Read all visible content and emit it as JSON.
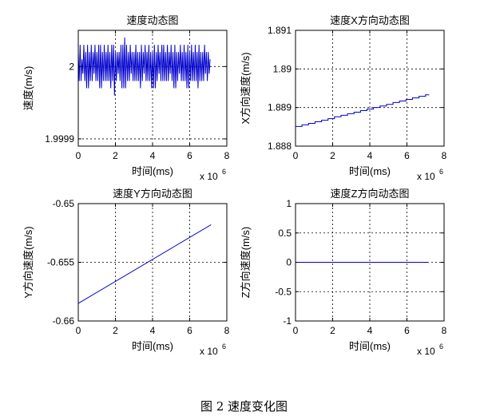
{
  "figure_caption": "图 2  速度变化图",
  "chart_data": [
    {
      "type": "line",
      "title": "速度动态图",
      "xlabel": "时间(ms)",
      "ylabel": "速度(m/s)",
      "x_exponent": "x 10",
      "x_exponent_power": "6",
      "xlim": [
        0,
        8
      ],
      "ylim": [
        1.99989,
        2.00005
      ],
      "xticks": [
        "0",
        "2",
        "4",
        "6",
        "8"
      ],
      "yticks": [
        {
          "value": 1.9999,
          "label": "1.9999"
        },
        {
          "value": 2.0,
          "label": "2"
        }
      ],
      "grid": true,
      "color": "#0000cc",
      "series": [
        {
          "x": [
            0.0,
            0.05,
            0.1,
            0.15,
            0.2,
            0.25,
            0.3,
            0.35,
            0.4,
            0.45,
            0.5,
            0.55,
            0.6,
            0.65,
            0.7,
            0.75,
            0.8,
            0.85,
            0.9,
            0.95,
            1.0,
            1.05,
            1.1,
            1.15,
            1.2,
            1.25,
            1.3,
            1.35,
            1.4,
            1.45,
            1.5,
            1.55,
            1.6,
            1.65,
            1.7,
            1.75,
            1.8,
            1.85,
            1.9,
            1.95,
            2.0,
            2.05,
            2.1,
            2.15,
            2.2,
            2.25,
            2.3,
            2.35,
            2.4,
            2.45,
            2.5,
            2.55,
            2.6,
            2.65,
            2.7,
            2.75,
            2.8,
            2.85,
            2.9,
            2.95,
            3.0,
            3.05,
            3.1,
            3.15,
            3.2,
            3.25,
            3.3,
            3.35,
            3.4,
            3.45,
            3.5,
            3.55,
            3.6,
            3.65,
            3.7,
            3.75,
            3.8,
            3.85,
            3.9,
            3.95,
            4.0,
            4.05,
            4.1,
            4.15,
            4.2,
            4.25,
            4.3,
            4.35,
            4.4,
            4.45,
            4.5,
            4.55,
            4.6,
            4.65,
            4.7,
            4.75,
            4.8,
            4.85,
            4.9,
            4.95,
            5.0,
            5.05,
            5.1,
            5.15,
            5.2,
            5.25,
            5.3,
            5.35,
            5.4,
            5.45,
            5.5,
            5.55,
            5.6,
            5.65,
            5.7,
            5.75,
            5.8,
            5.85,
            5.9,
            5.95,
            6.0,
            6.05,
            6.1,
            6.15,
            6.2,
            6.25,
            6.3,
            6.35,
            6.4,
            6.45,
            6.5,
            6.55,
            6.6,
            6.65,
            6.7,
            6.75,
            6.8,
            6.85,
            6.9,
            6.95,
            7.0,
            7.05,
            7.1
          ],
          "y": [
            2.00002,
            1.99998,
            2.00003,
            1.99998,
            2.00001,
            1.99999,
            2.00003,
            1.99998,
            2.00002,
            1.99997,
            2.00003,
            1.99997,
            2.00002,
            1.99998,
            2.00003,
            1.99998,
            2.00002,
            1.99999,
            2.00003,
            1.99998,
            2.00002,
            1.99998,
            2.00003,
            1.99997,
            2.00003,
            1.99997,
            2.00002,
            1.99998,
            2.00003,
            1.99998,
            2.00002,
            1.99998,
            2.00003,
            1.99998,
            2.00002,
            1.99997,
            2.00003,
            1.99998,
            2.00003,
            1.99996,
            2.00002,
            1.99998,
            2.00002,
            1.99999,
            2.00002,
            1.99998,
            2.00003,
            1.99997,
            2.00003,
            1.99997,
            2.00004,
            1.99997,
            2.00003,
            1.99998,
            2.00002,
            1.99998,
            2.00003,
            1.99999,
            2.00002,
            1.99998,
            2.00002,
            1.99998,
            2.00003,
            1.99998,
            2.00002,
            1.99998,
            2.00002,
            1.99997,
            2.00003,
            1.99998,
            2.00002,
            1.99999,
            2.00003,
            1.99998,
            2.00002,
            1.99998,
            2.00003,
            1.99998,
            2.00002,
            1.99997,
            2.00002,
            1.99997,
            2.00003,
            1.99997,
            2.00002,
            1.99998,
            2.00003,
            1.99999,
            2.00002,
            1.99998,
            2.00003,
            1.99998,
            2.00003,
            1.99998,
            2.00002,
            1.99998,
            2.00003,
            1.99998,
            2.00002,
            1.99999,
            2.00003,
            1.99998,
            2.00002,
            1.99997,
            2.00003,
            1.99997,
            2.00002,
            1.99998,
            2.00002,
            1.99999,
            2.00003,
            1.99998,
            2.00002,
            1.99998,
            2.00003,
            1.99998,
            2.00002,
            1.99997,
            2.00003,
            1.99997,
            2.00002,
            1.99998,
            2.00003,
            1.99998,
            2.00002,
            1.99998,
            2.00003,
            1.99998,
            2.00002,
            1.99997,
            2.00003,
            1.99998,
            2.00002,
            1.99998,
            2.00002,
            1.99998,
            2.00003,
            1.99999,
            2.00002,
            1.99998,
            2.00002,
            1.99999,
            2.00001
          ]
        }
      ]
    },
    {
      "type": "line",
      "title": "速度X方向动态图",
      "xlabel": "时间(ms)",
      "ylabel": "X方向速度(m/s)",
      "x_exponent": "x 10",
      "x_exponent_power": "6",
      "xlim": [
        0,
        8
      ],
      "ylim": [
        1.888,
        1.891
      ],
      "xticks": [
        "0",
        "2",
        "4",
        "6",
        "8"
      ],
      "yticks": [
        {
          "value": 1.888,
          "label": "1.888"
        },
        {
          "value": 1.889,
          "label": "1.889"
        },
        {
          "value": 1.89,
          "label": "1.89"
        },
        {
          "value": 1.891,
          "label": "1.891"
        }
      ],
      "grid": true,
      "color": "#0000cc",
      "series": [
        {
          "step": true,
          "x": [
            0.0,
            0.35,
            0.7,
            1.05,
            1.4,
            1.75,
            2.1,
            2.45,
            2.8,
            3.15,
            3.5,
            3.85,
            4.2,
            4.55,
            4.9,
            5.25,
            5.6,
            5.95,
            6.3,
            6.65,
            7.0,
            7.2
          ],
          "y": [
            1.88851,
            1.88855,
            1.88859,
            1.88863,
            1.88867,
            1.88871,
            1.88876,
            1.8888,
            1.88884,
            1.88888,
            1.88892,
            1.88896,
            1.889,
            1.88904,
            1.88908,
            1.88913,
            1.88917,
            1.88921,
            1.88925,
            1.88929,
            1.88933,
            1.88933
          ]
        }
      ]
    },
    {
      "type": "line",
      "title": "速度Y方向动态图",
      "xlabel": "时间(ms)",
      "ylabel": "Y方向速度(m/s)",
      "x_exponent": "x 10",
      "x_exponent_power": "6",
      "xlim": [
        0,
        8
      ],
      "ylim": [
        -0.66,
        -0.65
      ],
      "xticks": [
        "0",
        "2",
        "4",
        "6",
        "8"
      ],
      "yticks": [
        {
          "value": -0.66,
          "label": "-0.66"
        },
        {
          "value": -0.655,
          "label": "-0.655"
        },
        {
          "value": -0.65,
          "label": "-0.65"
        }
      ],
      "grid": true,
      "color": "#0000cc",
      "series": [
        {
          "x": [
            0.0,
            7.15
          ],
          "y": [
            -0.6585,
            -0.6518
          ]
        }
      ]
    },
    {
      "type": "line",
      "title": "速度Z方向动态图",
      "xlabel": "时间(ms)",
      "ylabel": "Z方向速度(m/s)",
      "x_exponent": "x 10",
      "x_exponent_power": "6",
      "xlim": [
        0,
        8
      ],
      "ylim": [
        -1,
        1
      ],
      "xticks": [
        "0",
        "2",
        "4",
        "6",
        "8"
      ],
      "yticks": [
        {
          "value": -1,
          "label": "-1"
        },
        {
          "value": -0.5,
          "label": "-0.5"
        },
        {
          "value": 0,
          "label": "0"
        },
        {
          "value": 0.5,
          "label": "0.5"
        },
        {
          "value": 1,
          "label": "1"
        }
      ],
      "grid": true,
      "color": "#0000cc",
      "series": [
        {
          "x": [
            0.0,
            7.15
          ],
          "y": [
            0,
            0
          ]
        }
      ]
    }
  ]
}
